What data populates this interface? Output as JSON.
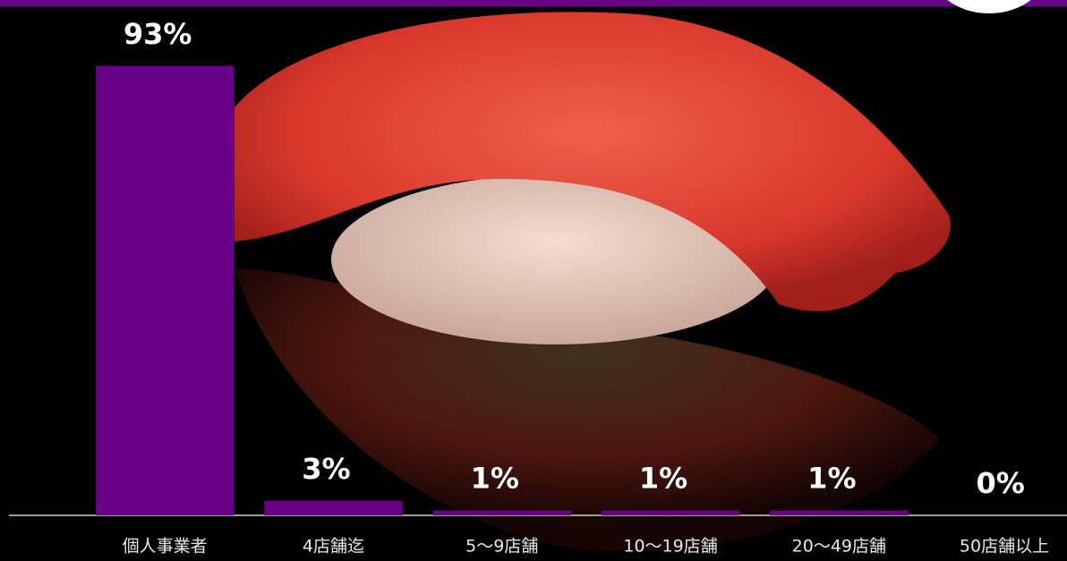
{
  "chart_data": {
    "type": "bar",
    "categories": [
      "個人事業者",
      "4店舗迄",
      "5〜9店舗",
      "10〜19店舗",
      "20〜49店舗",
      "50店舗以上"
    ],
    "values": [
      93,
      3,
      1,
      1,
      1,
      0
    ],
    "value_labels": [
      "93%",
      "3%",
      "1%",
      "1%",
      "1%",
      "0%"
    ],
    "color": "#6a0087",
    "ylim": [
      0,
      100
    ]
  }
}
